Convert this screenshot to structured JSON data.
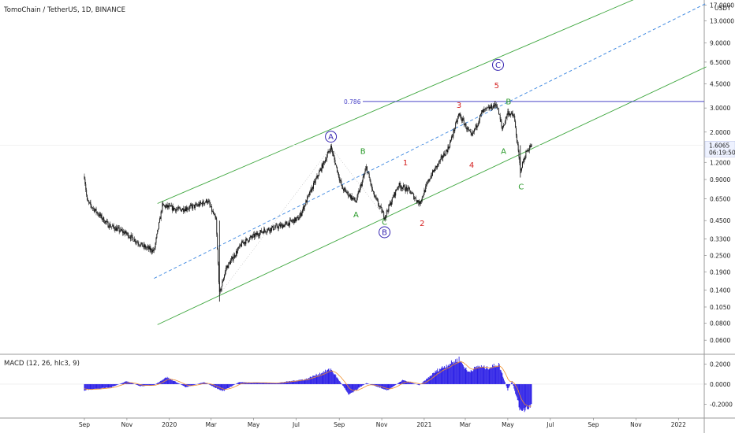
{
  "chart_data": {
    "type": "candlestick",
    "title": "TomoChain / TetherUS, 1D, BINANCE",
    "price_axis": {
      "scale": "log",
      "currency": "USDT",
      "ticks": [
        "17.0000",
        "13.0000",
        "9.0000",
        "6.5000",
        "4.5000",
        "3.0000",
        "2.0000",
        "1.2000",
        "0.9000",
        "0.6500",
        "0.4500",
        "0.3300",
        "0.2500",
        "0.1900",
        "0.1400",
        "0.1050",
        "0.0800",
        "0.0600"
      ],
      "ylim": [
        0.048,
        18.5
      ]
    },
    "time_axis": {
      "ticks": [
        "Sep",
        "Nov",
        "2020",
        "Mar",
        "May",
        "Jul",
        "Sep",
        "Nov",
        "2021",
        "Mar",
        "May",
        "Jul",
        "Sep",
        "Nov",
        "2022"
      ],
      "range": [
        "2019-08-15",
        "2022-02-15"
      ]
    },
    "last_price": "1.6065",
    "countdown": "06:19:50",
    "fib_level": {
      "label": "0.786",
      "price": 3.35,
      "color": "#4a44c8"
    },
    "channel_color": "#3da63d",
    "midline_color": "#3a86e0",
    "price_anchors": [
      {
        "date": "2019-09-01",
        "price": 0.95
      },
      {
        "date": "2019-09-05",
        "price": 0.62
      },
      {
        "date": "2019-10-05",
        "price": 0.42
      },
      {
        "date": "2019-11-01",
        "price": 0.36
      },
      {
        "date": "2019-11-25",
        "price": 0.29
      },
      {
        "date": "2019-12-10",
        "price": 0.27
      },
      {
        "date": "2019-12-22",
        "price": 0.58
      },
      {
        "date": "2020-01-15",
        "price": 0.54
      },
      {
        "date": "2020-02-10",
        "price": 0.58
      },
      {
        "date": "2020-02-25",
        "price": 0.63
      },
      {
        "date": "2020-03-08",
        "price": 0.45
      },
      {
        "date": "2020-03-13",
        "price": 0.13
      },
      {
        "date": "2020-03-22",
        "price": 0.2
      },
      {
        "date": "2020-04-15",
        "price": 0.31
      },
      {
        "date": "2020-05-15",
        "price": 0.38
      },
      {
        "date": "2020-06-15",
        "price": 0.42
      },
      {
        "date": "2020-07-05",
        "price": 0.47
      },
      {
        "date": "2020-07-25",
        "price": 0.8
      },
      {
        "date": "2020-08-20",
        "price": 1.55
      },
      {
        "date": "2020-09-05",
        "price": 0.78
      },
      {
        "date": "2020-09-25",
        "price": 0.62
      },
      {
        "date": "2020-10-10",
        "price": 1.1
      },
      {
        "date": "2020-10-20",
        "price": 0.7
      },
      {
        "date": "2020-11-05",
        "price": 0.48
      },
      {
        "date": "2020-11-25",
        "price": 0.82
      },
      {
        "date": "2020-12-10",
        "price": 0.75
      },
      {
        "date": "2020-12-25",
        "price": 0.6
      },
      {
        "date": "2021-01-10",
        "price": 0.95
      },
      {
        "date": "2021-02-05",
        "price": 1.55
      },
      {
        "date": "2021-02-20",
        "price": 2.7
      },
      {
        "date": "2021-03-10",
        "price": 1.85
      },
      {
        "date": "2021-03-25",
        "price": 2.8
      },
      {
        "date": "2021-04-15",
        "price": 3.2
      },
      {
        "date": "2021-04-23",
        "price": 2.1
      },
      {
        "date": "2021-05-01",
        "price": 2.8
      },
      {
        "date": "2021-05-10",
        "price": 2.6
      },
      {
        "date": "2021-05-19",
        "price": 1.05
      },
      {
        "date": "2021-05-28",
        "price": 1.45
      },
      {
        "date": "2021-06-04",
        "price": 1.6
      }
    ],
    "macd": {
      "label": "MACD (12, 26, hlc3, 9)",
      "ticks": [
        "0.2000",
        "0.0000",
        "-0.2000"
      ],
      "ylim": [
        -0.33,
        0.29
      ],
      "hist_color": "#2b1ee6",
      "signal_color": "#f08f2c",
      "hist_anchors": [
        {
          "date": "2019-09-01",
          "v": -0.06
        },
        {
          "date": "2019-10-10",
          "v": -0.03
        },
        {
          "date": "2019-11-01",
          "v": 0.03
        },
        {
          "date": "2019-11-20",
          "v": -0.02
        },
        {
          "date": "2019-12-10",
          "v": -0.01
        },
        {
          "date": "2019-12-28",
          "v": 0.07
        },
        {
          "date": "2020-01-25",
          "v": -0.03
        },
        {
          "date": "2020-02-20",
          "v": 0.02
        },
        {
          "date": "2020-03-18",
          "v": -0.07
        },
        {
          "date": "2020-04-10",
          "v": 0.02
        },
        {
          "date": "2020-06-01",
          "v": 0.01
        },
        {
          "date": "2020-07-15",
          "v": 0.05
        },
        {
          "date": "2020-08-20",
          "v": 0.15
        },
        {
          "date": "2020-09-15",
          "v": -0.1
        },
        {
          "date": "2020-10-10",
          "v": 0.01
        },
        {
          "date": "2020-11-10",
          "v": -0.06
        },
        {
          "date": "2020-12-01",
          "v": 0.04
        },
        {
          "date": "2020-12-25",
          "v": -0.01
        },
        {
          "date": "2021-01-20",
          "v": 0.14
        },
        {
          "date": "2021-02-20",
          "v": 0.25
        },
        {
          "date": "2021-03-05",
          "v": 0.12
        },
        {
          "date": "2021-03-20",
          "v": 0.18
        },
        {
          "date": "2021-04-01",
          "v": 0.16
        },
        {
          "date": "2021-04-10",
          "v": 0.18
        },
        {
          "date": "2021-04-18",
          "v": 0.2
        },
        {
          "date": "2021-05-01",
          "v": -0.06
        },
        {
          "date": "2021-05-07",
          "v": 0.03
        },
        {
          "date": "2021-05-20",
          "v": -0.28
        },
        {
          "date": "2021-05-28",
          "v": -0.25
        },
        {
          "date": "2021-06-04",
          "v": -0.22
        }
      ]
    },
    "channels": [
      {
        "name": "upper",
        "points": [
          {
            "date": "2019-12-15",
            "price": 0.6
          },
          {
            "date": "2021-12-01",
            "price": 22.0
          }
        ]
      },
      {
        "name": "mid",
        "points": [
          {
            "date": "2019-12-10",
            "price": 0.17
          },
          {
            "date": "2022-02-10",
            "price": 17.5
          }
        ]
      },
      {
        "name": "lower",
        "points": [
          {
            "date": "2019-12-15",
            "price": 0.078
          },
          {
            "date": "2022-02-10",
            "price": 6.0
          }
        ]
      }
    ],
    "wave_labels": [
      {
        "text": "A",
        "date": "2020-08-20",
        "price": 1.85,
        "style": "circle",
        "color": "#3423b0"
      },
      {
        "text": "B",
        "date": "2020-11-05",
        "price": 0.37,
        "style": "circle",
        "color": "#3423b0"
      },
      {
        "text": "C",
        "date": "2021-04-17",
        "price": 6.2,
        "style": "circle",
        "color": "#3423b0"
      },
      {
        "text": "B",
        "date": "2020-10-05",
        "price": 1.45,
        "style": "plain",
        "color": "#2a9a2a"
      },
      {
        "text": "A",
        "date": "2020-09-25",
        "price": 0.5,
        "style": "plain",
        "color": "#2a9a2a"
      },
      {
        "text": "C",
        "date": "2020-11-05",
        "price": 0.44,
        "style": "plain",
        "color": "#2a9a2a"
      },
      {
        "text": "B",
        "date": "2021-05-02",
        "price": 3.35,
        "style": "plain",
        "color": "#2a9a2a"
      },
      {
        "text": "A",
        "date": "2021-04-25",
        "price": 1.45,
        "style": "plain",
        "color": "#2a9a2a"
      },
      {
        "text": "C",
        "date": "2021-05-20",
        "price": 0.8,
        "style": "plain",
        "color": "#2a9a2a"
      },
      {
        "text": "1",
        "date": "2020-12-05",
        "price": 1.2,
        "style": "plain",
        "color": "#d41e1e"
      },
      {
        "text": "2",
        "date": "2020-12-29",
        "price": 0.43,
        "style": "plain",
        "color": "#d41e1e"
      },
      {
        "text": "3",
        "date": "2021-02-20",
        "price": 3.15,
        "style": "plain",
        "color": "#d41e1e"
      },
      {
        "text": "4",
        "date": "2021-03-10",
        "price": 1.15,
        "style": "plain",
        "color": "#d41e1e"
      },
      {
        "text": "5",
        "date": "2021-04-15",
        "price": 4.4,
        "style": "plain",
        "color": "#d41e1e"
      }
    ]
  }
}
